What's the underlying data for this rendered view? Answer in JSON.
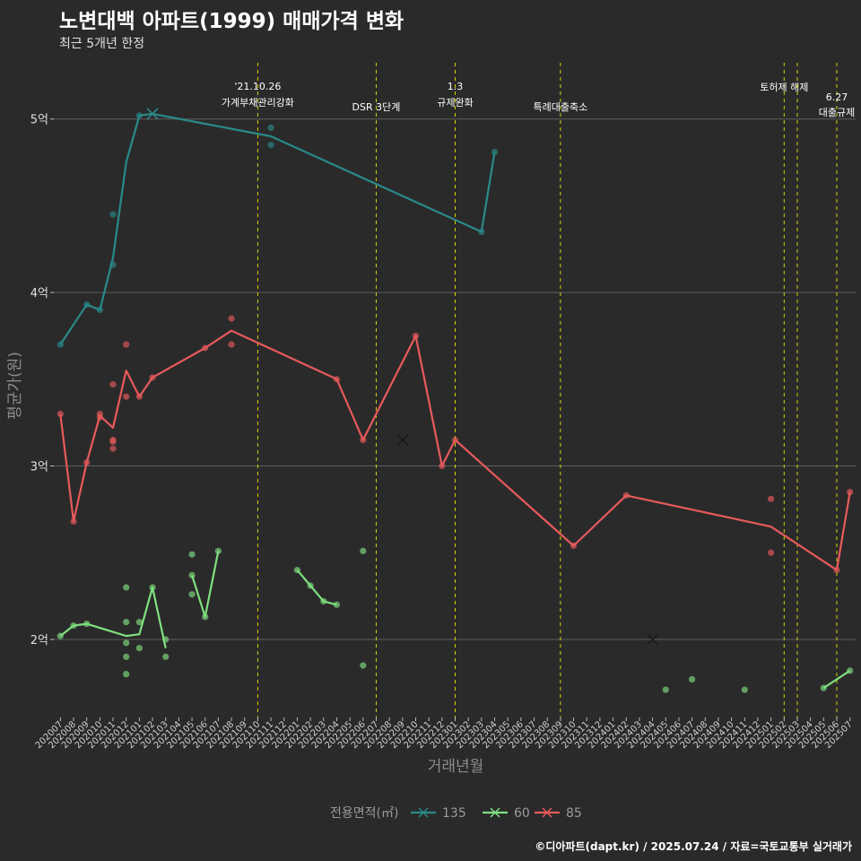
{
  "title": "노변대백 아파트(1999) 매매가격 변화",
  "subtitle": "최근 5개년 한정",
  "caption": "©디아파트(dapt.kr) / 2025.07.24 / 자료=국토교통부 실거래가",
  "colors": {
    "background": "#2b2a2b",
    "grid": "#5e5e5e",
    "vline": "#d4d40a",
    "s135": "#2a8a8a",
    "s60": "#7fe07f",
    "s85": "#e85a5a"
  },
  "chart_data": {
    "type": "line",
    "xlabel": "거래년월",
    "ylabel": "평균가(원)",
    "ylim": [
      1.55,
      5.35
    ],
    "grid": true,
    "legend_position": "bottom",
    "legend_title": "전용면적(㎡)",
    "yticks": [
      {
        "value": 2,
        "label": "2억"
      },
      {
        "value": 3,
        "label": "3억"
      },
      {
        "value": 4,
        "label": "4억"
      },
      {
        "value": 5,
        "label": "5억"
      }
    ],
    "x_categories": [
      "202007",
      "202008",
      "202009",
      "202010",
      "202011",
      "202012",
      "202101",
      "202102",
      "202103",
      "202104",
      "202105",
      "202106",
      "202107",
      "202108",
      "202109",
      "202110",
      "202111",
      "202112",
      "202201",
      "202202",
      "202203",
      "202204",
      "202205",
      "202206",
      "202207",
      "202208",
      "202209",
      "202210",
      "202211",
      "202212",
      "202301",
      "202302",
      "202303",
      "202304",
      "202305",
      "202306",
      "202307",
      "202308",
      "202309",
      "202310",
      "202311",
      "202312",
      "202401",
      "202402",
      "202403",
      "202404",
      "202405",
      "202406",
      "202407",
      "202408",
      "202409",
      "202410",
      "202411",
      "202412",
      "202501",
      "202502",
      "202503",
      "202504",
      "202505",
      "202506",
      "202507"
    ],
    "events": [
      {
        "x": 15,
        "lines": [
          "'21.10.26",
          "가계부채관리강화"
        ]
      },
      {
        "x": 24,
        "lines": [
          "DSR 3단계"
        ]
      },
      {
        "x": 30,
        "lines": [
          "1.3",
          "규제완화"
        ]
      },
      {
        "x": 38,
        "lines": [
          "특례대출축소"
        ]
      },
      {
        "x": 55,
        "lines": [
          "토허제 해제"
        ]
      },
      {
        "x": 56,
        "lines": []
      },
      {
        "x": 59,
        "lines": [
          "6.27",
          "대출규제"
        ]
      }
    ],
    "series": [
      {
        "name": "135",
        "color": "#2a8a8a",
        "line": [
          [
            0,
            3.7
          ],
          [
            2,
            3.93
          ],
          [
            3,
            3.9
          ],
          [
            4,
            4.2
          ],
          [
            5,
            4.75
          ],
          [
            6,
            5.02
          ],
          [
            7,
            5.03
          ],
          [
            16,
            4.9
          ],
          [
            32,
            4.35
          ],
          [
            33,
            4.81
          ]
        ],
        "points": [
          [
            0,
            3.7
          ],
          [
            2,
            3.93
          ],
          [
            3,
            3.9
          ],
          [
            4,
            4.16
          ],
          [
            4,
            4.45
          ],
          [
            6,
            5.02
          ],
          [
            16,
            4.95
          ],
          [
            16,
            4.85
          ],
          [
            32,
            4.35
          ],
          [
            33,
            4.81
          ]
        ],
        "cross": [
          [
            7,
            5.03
          ]
        ]
      },
      {
        "name": "60",
        "color": "#7fe07f",
        "segments": [
          [
            [
              0,
              2.02
            ],
            [
              1,
              2.08
            ],
            [
              2,
              2.09
            ],
            [
              5,
              2.02
            ],
            [
              6,
              2.03
            ],
            [
              7,
              2.3
            ],
            [
              8,
              1.95
            ]
          ],
          [
            [
              10,
              2.37
            ],
            [
              11,
              2.13
            ],
            [
              12,
              2.51
            ]
          ],
          [
            [
              18,
              2.4
            ],
            [
              19,
              2.31
            ],
            [
              20,
              2.22
            ],
            [
              21,
              2.2
            ]
          ],
          [
            [
              58,
              1.72
            ],
            [
              60,
              1.82
            ]
          ]
        ],
        "points": [
          [
            0,
            2.02
          ],
          [
            1,
            2.08
          ],
          [
            2,
            2.09
          ],
          [
            5,
            2.3
          ],
          [
            5,
            2.1
          ],
          [
            5,
            1.98
          ],
          [
            5,
            1.9
          ],
          [
            5,
            1.8
          ],
          [
            6,
            1.95
          ],
          [
            6,
            2.1
          ],
          [
            7,
            2.3
          ],
          [
            8,
            2.0
          ],
          [
            8,
            1.9
          ],
          [
            10,
            2.49
          ],
          [
            10,
            2.37
          ],
          [
            10,
            2.26
          ],
          [
            11,
            2.13
          ],
          [
            12,
            2.51
          ],
          [
            18,
            2.4
          ],
          [
            19,
            2.31
          ],
          [
            20,
            2.22
          ],
          [
            21,
            2.2
          ],
          [
            23,
            2.51
          ],
          [
            23,
            1.85
          ],
          [
            46,
            1.71
          ],
          [
            48,
            1.77
          ],
          [
            52,
            1.71
          ],
          [
            58,
            1.72
          ],
          [
            60,
            1.82
          ]
        ],
        "cross": []
      },
      {
        "name": "85",
        "color": "#e85a5a",
        "line": [
          [
            0,
            3.3
          ],
          [
            1,
            2.68
          ],
          [
            2,
            3.02
          ],
          [
            3,
            3.29
          ],
          [
            4,
            3.22
          ],
          [
            5,
            3.55
          ],
          [
            6,
            3.4
          ],
          [
            7,
            3.51
          ],
          [
            11,
            3.68
          ],
          [
            13,
            3.78
          ],
          [
            21,
            3.5
          ],
          [
            23,
            3.15
          ],
          [
            27,
            3.75
          ],
          [
            29,
            3.0
          ],
          [
            30,
            3.15
          ],
          [
            39,
            2.54
          ],
          [
            43,
            2.83
          ],
          [
            54,
            2.65
          ],
          [
            59,
            2.4
          ],
          [
            60,
            2.85
          ]
        ],
        "points": [
          [
            0,
            3.3
          ],
          [
            1,
            2.68
          ],
          [
            2,
            3.02
          ],
          [
            3,
            3.3
          ],
          [
            3,
            3.28
          ],
          [
            4,
            3.47
          ],
          [
            4,
            3.15
          ],
          [
            4,
            3.14
          ],
          [
            4,
            3.1
          ],
          [
            5,
            3.7
          ],
          [
            5,
            3.4
          ],
          [
            6,
            3.4
          ],
          [
            7,
            3.51
          ],
          [
            11,
            3.68
          ],
          [
            13,
            3.85
          ],
          [
            13,
            3.7
          ],
          [
            21,
            3.5
          ],
          [
            23,
            3.15
          ],
          [
            27,
            3.75
          ],
          [
            29,
            3.0
          ],
          [
            30,
            3.15
          ],
          [
            39,
            2.54
          ],
          [
            43,
            2.83
          ],
          [
            54,
            2.81
          ],
          [
            54,
            2.5
          ],
          [
            59,
            2.4
          ],
          [
            60,
            2.85
          ]
        ],
        "cross": [
          [
            26,
            3.15
          ],
          [
            45,
            2.0
          ]
        ]
      }
    ]
  }
}
